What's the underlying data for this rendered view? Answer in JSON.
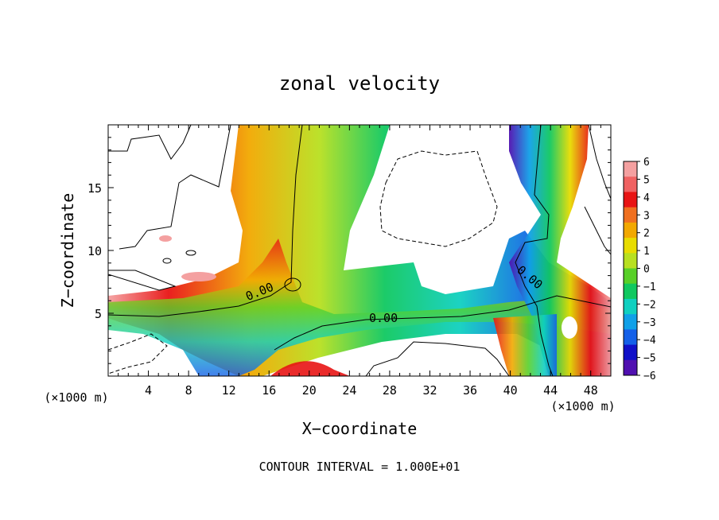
{
  "chart_data": {
    "type": "heatmap",
    "title": "zonal velocity",
    "xlabel": "X−coordinate",
    "ylabel": "Z−coordinate",
    "x_unit": "(×1000 m)",
    "y_unit": "(×1000 m)",
    "xlim": [
      0,
      50
    ],
    "ylim": [
      0,
      20
    ],
    "x_ticks": [
      4,
      8,
      12,
      16,
      20,
      24,
      28,
      32,
      36,
      40,
      44,
      48
    ],
    "y_ticks": [
      5,
      10,
      15
    ],
    "colorbar": {
      "vmin": -6,
      "vmax": 6,
      "labels": [
        "6",
        "5",
        "4",
        "3",
        "2",
        "1",
        "0",
        "−1",
        "−2",
        "−3",
        "−4",
        "−5",
        "−6"
      ],
      "colors": [
        "#f4a0a0",
        "#f06262",
        "#e81414",
        "#f07020",
        "#f2a800",
        "#e8dc00",
        "#b8e020",
        "#58d028",
        "#10c860",
        "#10d0c0",
        "#10a0e8",
        "#1460e8",
        "#1010c8",
        "#5010b0"
      ]
    },
    "contour_labels": [
      "0.00",
      "0.00",
      "0.00"
    ],
    "footnote": "CONTOUR INTERVAL = 1.000E+01",
    "cell_values_note_free": true,
    "grid": false
  }
}
